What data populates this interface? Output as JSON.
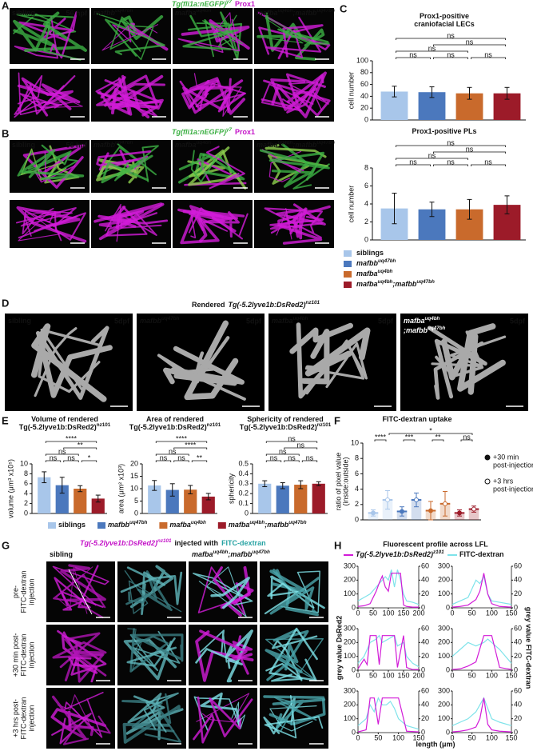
{
  "genotypes": [
    [
      "siblings"
    ],
    [
      "mafbb",
      "uq47bh"
    ],
    [
      "mafba",
      "uq4bh"
    ],
    [
      "mafba",
      "uq4bh",
      ";mafbb",
      "uq47bh"
    ]
  ],
  "genotype_colors": [
    "#a8c6ea",
    "#4b78bd",
    "#c96a2c",
    "#9c1b29"
  ],
  "panel_a": {
    "label": "A",
    "header": [
      "Tg(fli1a:nEGFP)",
      "y7"
    ],
    "stain": "Prox1",
    "stage": "56 hpf",
    "images": [
      [
        "sibling"
      ],
      [
        "mafbb",
        "uq47bh"
      ],
      [
        "mafba",
        "uq4bh"
      ],
      [
        "mafba",
        "uq4bh",
        ";mafbb",
        "uq47bh"
      ]
    ]
  },
  "panel_b": {
    "label": "B",
    "header": [
      "Tg(fli1a:nEGFP)",
      "y7"
    ],
    "stain": "Prox1",
    "stage": "56 hpf",
    "images": [
      [
        "sibling"
      ],
      [
        "mafbb",
        "uq47bh"
      ],
      [
        "mafba",
        "uq4bh"
      ],
      [
        "mafba",
        "uq4bh",
        ";mafbb",
        "uq47bh"
      ]
    ]
  },
  "panel_c": {
    "label": "C",
    "charts": [
      {
        "type": "bar",
        "title": [
          [
            "Prox1-positive"
          ],
          [
            "craniofacial LECs"
          ]
        ],
        "ylabel": [
          "cell number"
        ],
        "ylim": [
          0,
          100
        ],
        "yticks": [
          0,
          20,
          40,
          60,
          80,
          100
        ],
        "values": [
          48,
          47,
          45,
          45
        ],
        "errors": [
          9,
          9,
          10,
          10
        ],
        "annotations": [
          {
            "label": "ns",
            "between": [
              0,
              3
            ]
          },
          {
            "label": "ns",
            "between": [
              0,
              2
            ]
          },
          {
            "label": "ns",
            "between": [
              1,
              3
            ]
          },
          {
            "label": "ns",
            "between": [
              0,
              1
            ]
          },
          {
            "label": "ns",
            "between": [
              1,
              2
            ]
          },
          {
            "label": "ns",
            "between": [
              2,
              3
            ]
          }
        ]
      },
      {
        "type": "bar",
        "title": [
          [
            "Prox1-positive PLs"
          ]
        ],
        "ylabel": [
          "cell number"
        ],
        "ylim": [
          0,
          8
        ],
        "yticks": [
          0,
          2,
          4,
          6,
          8
        ],
        "values": [
          3.5,
          3.4,
          3.4,
          3.9
        ],
        "errors": [
          1.7,
          0.8,
          1.1,
          1.0
        ],
        "annotations": [
          {
            "label": "ns",
            "between": [
              0,
              3
            ]
          },
          {
            "label": "ns",
            "between": [
              0,
              2
            ]
          },
          {
            "label": "ns",
            "between": [
              1,
              3
            ]
          },
          {
            "label": "ns",
            "between": [
              0,
              1
            ]
          },
          {
            "label": "ns",
            "between": [
              1,
              2
            ]
          },
          {
            "label": "ns",
            "between": [
              2,
              3
            ]
          }
        ]
      }
    ]
  },
  "panel_d": {
    "label": "D",
    "title_prefix": "Rendered",
    "title": [
      "Tg(-5.2lyve1b:DsRed2)",
      "nz101"
    ],
    "stage": "5dpf",
    "images": [
      [
        "sibling"
      ],
      [
        "mafbb",
        "uq47bh"
      ],
      [
        "mafba",
        "uq4bh"
      ],
      [
        "mafba",
        "uq4bh",
        ";mafbb",
        "uq47bh"
      ]
    ]
  },
  "panel_e": {
    "label": "E",
    "charts": [
      {
        "type": "bar",
        "title": [
          [
            "Volume of rendered"
          ],
          [
            "Tg(-5.2lyve1b:DsRed2)",
            "nz101"
          ]
        ],
        "ylabel": [
          "volume (μm³ x10⁵)"
        ],
        "ylim": [
          0,
          10
        ],
        "yticks": [
          0,
          2,
          4,
          6,
          8,
          10
        ],
        "values": [
          7.3,
          5.7,
          5.0,
          3.0
        ],
        "errors": [
          1.1,
          1.6,
          0.6,
          0.7
        ],
        "annotations": [
          {
            "label": "****",
            "between": [
              0,
              3
            ]
          },
          {
            "label": "ns",
            "between": [
              0,
              2
            ]
          },
          {
            "label": "**",
            "between": [
              1,
              3
            ]
          },
          {
            "label": "ns",
            "between": [
              0,
              1
            ]
          },
          {
            "label": "ns",
            "between": [
              1,
              2
            ]
          },
          {
            "label": "*",
            "between": [
              2,
              3
            ]
          }
        ]
      },
      {
        "type": "bar",
        "title": [
          [
            "Area of rendered"
          ],
          [
            "Tg(-5.2lyve1b:DsRed2)",
            "nz101"
          ]
        ],
        "ylabel": [
          "area (μm² x10³)"
        ],
        "ylim": [
          0,
          20
        ],
        "yticks": [
          0,
          5,
          10,
          15,
          20
        ],
        "values": [
          11.3,
          9.5,
          9.6,
          6.8
        ],
        "errors": [
          2.0,
          2.5,
          1.7,
          1.3
        ],
        "annotations": [
          {
            "label": "****",
            "between": [
              0,
              3
            ]
          },
          {
            "label": "ns",
            "between": [
              0,
              2
            ]
          },
          {
            "label": "****",
            "between": [
              1,
              3
            ]
          },
          {
            "label": "ns",
            "between": [
              0,
              1
            ]
          },
          {
            "label": "ns",
            "between": [
              1,
              2
            ]
          },
          {
            "label": "**",
            "between": [
              2,
              3
            ]
          }
        ]
      },
      {
        "type": "bar",
        "title": [
          [
            "Sphericity of rendered"
          ],
          [
            "Tg(-5.2lyve1b:DsRed2)",
            "nz101"
          ]
        ],
        "ylabel": [
          "sphericity"
        ],
        "ylim": [
          0,
          0.5
        ],
        "yticks": [
          0,
          0.1,
          0.2,
          0.3,
          0.4,
          0.5
        ],
        "values": [
          0.3,
          0.28,
          0.29,
          0.3
        ],
        "errors": [
          0.03,
          0.03,
          0.04,
          0.02
        ],
        "annotations": [
          {
            "label": "ns",
            "between": [
              0,
              3
            ]
          },
          {
            "label": "ns",
            "between": [
              0,
              2
            ]
          },
          {
            "label": "ns",
            "between": [
              1,
              3
            ]
          },
          {
            "label": "ns",
            "between": [
              0,
              1
            ]
          },
          {
            "label": "ns",
            "between": [
              1,
              2
            ]
          },
          {
            "label": "ns",
            "between": [
              2,
              3
            ]
          }
        ]
      }
    ]
  },
  "panel_f": {
    "label": "F",
    "chart": {
      "type": "bar",
      "title": [
        [
          "FITC-dextran uptake"
        ]
      ],
      "ylabel": [
        "ratio of pixel value",
        "(inside:outside)"
      ],
      "ylim": [
        0,
        10
      ],
      "yticks": [
        0,
        2,
        4,
        6,
        8,
        10
      ],
      "series": [
        {
          "name": [
            "+30 min",
            "post-injection"
          ],
          "marker": "filled",
          "values": [
            0.9,
            1.1,
            1.2,
            0.9
          ],
          "errors": [
            0.4,
            0.6,
            1.2,
            0.4
          ]
        },
        {
          "name": [
            "+3 hrs",
            "post-injection"
          ],
          "marker": "open",
          "values": [
            2.6,
            2.6,
            2.1,
            1.4
          ],
          "errors": [
            1.2,
            0.9,
            1.6,
            0.4
          ]
        }
      ],
      "annotations": [
        {
          "label": "****",
          "between": [
            0,
            1
          ]
        },
        {
          "label": "***",
          "between": [
            2,
            3
          ]
        },
        {
          "label": "**",
          "between": [
            4,
            5
          ]
        },
        {
          "label": "ns",
          "between": [
            6,
            7
          ]
        },
        {
          "label": "*",
          "between": [
            1,
            7
          ]
        }
      ]
    }
  },
  "panel_g": {
    "label": "G",
    "title": [
      "Tg(-5.2lyve1b:DsRed2)",
      "nz101"
    ],
    "title_suffix": "injected with",
    "title_dye": "FITC-dextran",
    "columns": [
      [
        "sibling"
      ],
      [
        "mafba",
        "uq4bh",
        ";mafbb",
        "uq47bh"
      ]
    ],
    "rows": [
      [
        "pre-",
        "FITC-dextran",
        "injection"
      ],
      [
        "+30 min post-",
        "FITC-dextran",
        "injection"
      ],
      [
        "+3 hrs post-",
        "FITC-dextran",
        "injection"
      ]
    ]
  },
  "panel_h": {
    "label": "H",
    "title": "Fluorescent profile across LFL",
    "series": [
      {
        "name": [
          "Tg(-5.2lyve1b:DsRed2)",
          "z101"
        ],
        "color": "#d21bd8"
      },
      {
        "name": [
          "FITC-dextran"
        ],
        "color": "#7fe3ea"
      }
    ],
    "ylabel": "grey value DsRed2",
    "y2label": "grey value FITC-dextran",
    "xlabel": "length (μm)",
    "ylim": [
      0,
      300
    ],
    "yticks": [
      0,
      100,
      200,
      300
    ],
    "y2lim": [
      0,
      60
    ],
    "y2ticks": [
      0,
      20,
      40,
      60
    ],
    "charts": [
      {
        "type": "line",
        "xlim": [
          0,
          200
        ],
        "xticks": [
          0,
          50,
          100,
          150,
          200
        ],
        "x": [
          0,
          20,
          40,
          60,
          70,
          80,
          90,
          100,
          110,
          120,
          130,
          140,
          150,
          160,
          180,
          200
        ],
        "y": [
          10,
          15,
          30,
          120,
          180,
          230,
          150,
          120,
          250,
          250,
          250,
          250,
          20,
          10,
          5,
          5
        ],
        "y2": [
          10,
          15,
          20,
          30,
          35,
          40,
          45,
          40,
          55,
          30,
          55,
          40,
          20,
          10,
          8,
          5
        ]
      },
      {
        "type": "line",
        "xlim": [
          0,
          150
        ],
        "xticks": [
          0,
          50,
          100,
          150
        ],
        "x": [
          0,
          20,
          40,
          60,
          70,
          80,
          90,
          100,
          120,
          150
        ],
        "y": [
          5,
          10,
          20,
          60,
          120,
          250,
          100,
          30,
          10,
          5
        ],
        "y2": [
          5,
          10,
          15,
          40,
          35,
          45,
          20,
          10,
          8,
          5
        ]
      },
      {
        "type": "line",
        "xlim": [
          0,
          200
        ],
        "xticks": [
          0,
          50,
          100,
          150,
          200
        ],
        "x": [
          0,
          20,
          30,
          40,
          60,
          70,
          80,
          100,
          120,
          130,
          150,
          160,
          180,
          200
        ],
        "y": [
          10,
          80,
          40,
          250,
          250,
          40,
          250,
          250,
          250,
          20,
          250,
          20,
          5,
          5
        ],
        "y2": [
          10,
          20,
          30,
          40,
          45,
          50,
          40,
          45,
          50,
          35,
          40,
          20,
          10,
          5
        ]
      },
      {
        "type": "line",
        "xlim": [
          0,
          150
        ],
        "xticks": [
          0,
          50,
          100,
          150
        ],
        "x": [
          0,
          20,
          40,
          60,
          80,
          90,
          100,
          120,
          150
        ],
        "y": [
          5,
          10,
          30,
          60,
          250,
          250,
          250,
          20,
          5
        ],
        "y2": [
          20,
          30,
          40,
          35,
          40,
          45,
          40,
          30,
          10
        ]
      },
      {
        "type": "line",
        "xlim": [
          0,
          150
        ],
        "xticks": [
          0,
          50,
          100,
          150
        ],
        "x": [
          0,
          20,
          30,
          40,
          50,
          60,
          70,
          80,
          90,
          100,
          120,
          150
        ],
        "y": [
          5,
          20,
          250,
          250,
          60,
          250,
          250,
          250,
          250,
          250,
          10,
          5
        ],
        "y2": [
          10,
          20,
          40,
          30,
          50,
          40,
          40,
          45,
          35,
          20,
          10,
          5
        ]
      },
      {
        "type": "line",
        "xlim": [
          0,
          150
        ],
        "xticks": [
          0,
          50,
          100,
          150
        ],
        "x": [
          0,
          20,
          40,
          60,
          70,
          80,
          90,
          100,
          120,
          150
        ],
        "y": [
          5,
          10,
          20,
          40,
          100,
          250,
          60,
          20,
          10,
          5
        ],
        "y2": [
          10,
          15,
          20,
          30,
          40,
          50,
          35,
          20,
          15,
          10
        ]
      }
    ]
  }
}
